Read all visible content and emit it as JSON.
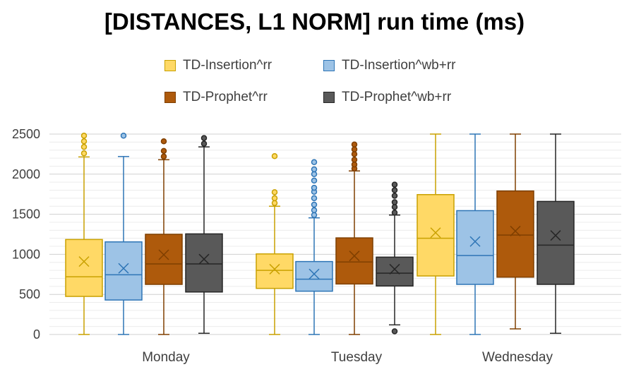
{
  "chart_data": {
    "type": "box",
    "title": "[DISTANCES, L1 NORM] run time (ms)",
    "xlabel": "",
    "ylabel": "",
    "ylim": [
      0,
      2500
    ],
    "yticks": [
      0,
      500,
      1000,
      1500,
      2000,
      2500
    ],
    "grid": true,
    "legend_position": "top",
    "categories": [
      "Monday",
      "Tuesday",
      "Wednesday"
    ],
    "series": [
      {
        "name": "TD-Insertion^rr",
        "fill": "#ffd966",
        "stroke": "#c9a100",
        "boxes": [
          {
            "min": 0,
            "q1": 475,
            "median": 720,
            "q3": 1185,
            "max": 2215,
            "mean": 910,
            "outliers": [
              2260,
              2340,
              2410,
              2480
            ]
          },
          {
            "min": 0,
            "q1": 575,
            "median": 800,
            "q3": 1005,
            "max": 1600,
            "mean": 815,
            "outliers": [
              1640,
              1700,
              1775,
              2225
            ]
          },
          {
            "min": 0,
            "q1": 730,
            "median": 1200,
            "q3": 1745,
            "max": 2500,
            "mean": 1270,
            "outliers": []
          }
        ]
      },
      {
        "name": "TD-Insertion^wb+rr",
        "fill": "#9dc3e6",
        "stroke": "#2e75b6",
        "boxes": [
          {
            "min": 0,
            "q1": 430,
            "median": 745,
            "q3": 1155,
            "max": 2220,
            "mean": 825,
            "outliers": [
              2480
            ]
          },
          {
            "min": 0,
            "q1": 540,
            "median": 690,
            "q3": 910,
            "max": 1455,
            "mean": 755,
            "outliers": [
              1490,
              1550,
              1620,
              1700,
              1780,
              1830,
              1920,
              2000,
              2060,
              2150
            ]
          },
          {
            "min": 0,
            "q1": 625,
            "median": 985,
            "q3": 1545,
            "max": 2500,
            "mean": 1160,
            "outliers": []
          }
        ]
      },
      {
        "name": "TD-Prophet^rr",
        "fill": "#ae5a0c",
        "stroke": "#7f3f00",
        "boxes": [
          {
            "min": 0,
            "q1": 625,
            "median": 880,
            "q3": 1250,
            "max": 2180,
            "mean": 995,
            "outliers": [
              2220,
              2290,
              2410,
              2520
            ]
          },
          {
            "min": 0,
            "q1": 630,
            "median": 905,
            "q3": 1205,
            "max": 2040,
            "mean": 980,
            "outliers": [
              2070,
              2120,
              2180,
              2250,
              2310,
              2370
            ]
          },
          {
            "min": 70,
            "q1": 715,
            "median": 1240,
            "q3": 1790,
            "max": 2500,
            "mean": 1290,
            "outliers": []
          }
        ]
      },
      {
        "name": "TD-Prophet^wb+rr",
        "fill": "#595959",
        "stroke": "#262626",
        "boxes": [
          {
            "min": 15,
            "q1": 530,
            "median": 880,
            "q3": 1255,
            "max": 2340,
            "mean": 940,
            "outliers": [
              2380,
              2450,
              2520
            ]
          },
          {
            "min": 120,
            "q1": 605,
            "median": 765,
            "q3": 965,
            "max": 1490,
            "mean": 815,
            "outliers": [
              40,
              1520,
              1590,
              1650,
              1730,
              1800,
              1870
            ]
          },
          {
            "min": 15,
            "q1": 625,
            "median": 1115,
            "q3": 1660,
            "max": 2500,
            "mean": 1235,
            "outliers": []
          }
        ]
      }
    ]
  }
}
